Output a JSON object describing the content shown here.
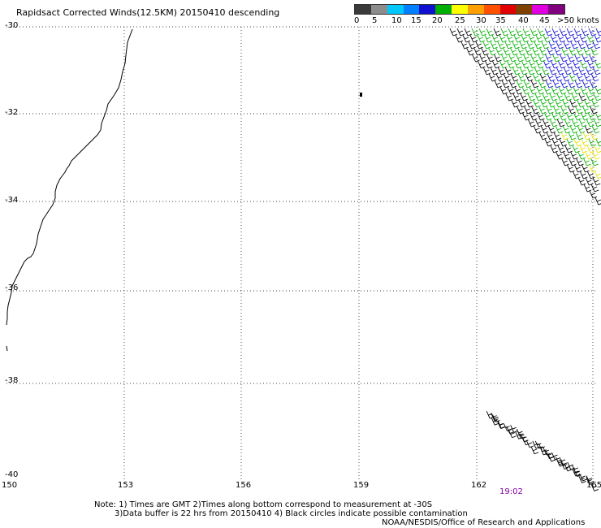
{
  "title": "Rapidsact Corrected Winds(12.5KM) 20150410 descending",
  "legend": {
    "colors": [
      "#3a3a3a",
      "#8c8c8c",
      "#00c8ff",
      "#0080ff",
      "#1010d0",
      "#00b000",
      "#ffff00",
      "#ffa000",
      "#ff5000",
      "#e00000",
      "#804000",
      "#e000e0",
      "#800080"
    ],
    "labels": [
      "0",
      "5",
      "10",
      "15",
      "20",
      "25",
      "30",
      "35",
      "40",
      "45",
      ">50 knots"
    ]
  },
  "axes": {
    "lat_labels": [
      "-30",
      "-32",
      "-34",
      "-36",
      "-38",
      "-40"
    ],
    "lon_labels": [
      "150",
      "153",
      "156",
      "159",
      "162",
      "165"
    ]
  },
  "time": "19:02",
  "notes": {
    "line1": "Note: 1) Times are GMT 2)Times along bottom correspond to measurement at -30S",
    "line2": "3)Data buffer is 22 hrs from 20150410 4) Black circles indicate possible contamination",
    "line3": "NOAA/NESDIS/Office of Research and Applications"
  },
  "wind_colors": {
    "black": "#000000",
    "green": "#00b000",
    "blue": "#1010d0",
    "yellow": "#e8e000"
  }
}
